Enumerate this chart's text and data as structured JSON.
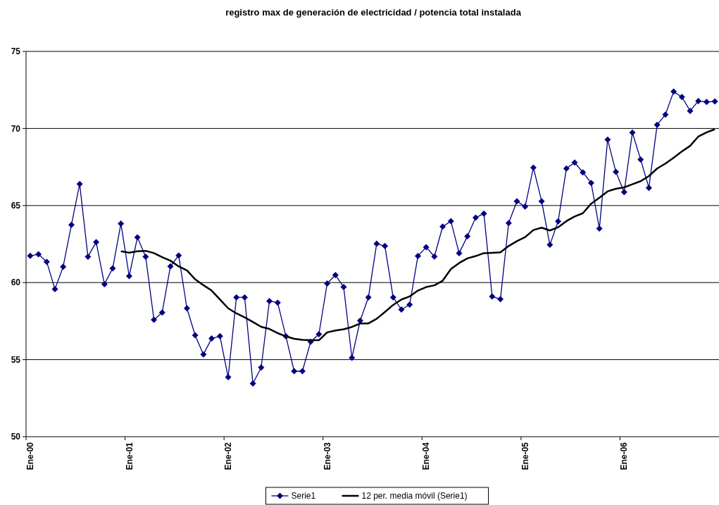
{
  "chart_data": {
    "type": "line",
    "title": "registro max de generación de electricidad / potencia total instalada",
    "categories": [
      "Ene-00",
      null,
      null,
      null,
      null,
      null,
      null,
      null,
      null,
      null,
      null,
      null,
      "Ene-01",
      null,
      null,
      null,
      null,
      null,
      null,
      null,
      null,
      null,
      null,
      null,
      "Ene-02",
      null,
      null,
      null,
      null,
      null,
      null,
      null,
      null,
      null,
      null,
      null,
      "Ene-03",
      null,
      null,
      null,
      null,
      null,
      null,
      null,
      null,
      null,
      null,
      null,
      "Ene-04",
      null,
      null,
      null,
      null,
      null,
      null,
      null,
      null,
      null,
      null,
      null,
      "Ene-05",
      null,
      null,
      null,
      null,
      null,
      null,
      null,
      null,
      null,
      null,
      null,
      "Ene-06",
      null,
      null,
      null,
      null,
      null,
      null,
      null,
      null,
      null,
      null,
      null
    ],
    "series": [
      {
        "name": "Serie1",
        "color": "#000080",
        "marker": "diamond",
        "values": [
          61.73,
          61.84,
          61.35,
          59.58,
          61.03,
          63.75,
          66.4,
          61.68,
          62.63,
          59.9,
          60.92,
          63.83,
          60.42,
          62.93,
          61.68,
          57.59,
          58.06,
          61.05,
          61.76,
          58.33,
          56.58,
          55.34,
          56.37,
          56.52,
          53.86,
          59.04,
          59.04,
          53.45,
          54.49,
          58.8,
          58.7,
          56.51,
          54.25,
          54.25,
          56.16,
          56.65,
          59.94,
          60.49,
          59.71,
          55.12,
          57.53,
          59.04,
          62.52,
          62.37,
          59.04,
          58.25,
          58.57,
          61.72,
          62.3,
          61.69,
          63.63,
          63.98,
          61.91,
          63.0,
          64.21,
          64.48,
          59.1,
          58.92,
          63.86,
          65.28,
          64.93,
          67.46,
          65.28,
          62.45,
          63.97,
          67.4,
          67.79,
          67.15,
          66.47,
          63.5,
          69.28,
          67.18,
          65.87,
          69.73,
          67.99,
          66.15,
          70.23,
          70.9,
          72.39,
          72.04,
          71.14,
          71.78,
          71.72,
          71.75
        ]
      },
      {
        "name": "12 per. media móvil (Serie1)",
        "color": "#000000",
        "marker": "none",
        "values": [
          null,
          null,
          null,
          null,
          null,
          null,
          null,
          null,
          null,
          null,
          null,
          62.03,
          61.94,
          62.03,
          62.06,
          61.91,
          61.65,
          61.42,
          61.05,
          60.79,
          60.21,
          59.83,
          59.48,
          58.91,
          58.33,
          58.0,
          57.74,
          57.44,
          57.13,
          56.99,
          56.72,
          56.51,
          56.35,
          56.28,
          56.26,
          56.26,
          56.77,
          56.89,
          56.97,
          57.12,
          57.35,
          57.35,
          57.65,
          58.09,
          58.55,
          58.9,
          59.1,
          59.48,
          59.71,
          59.82,
          60.12,
          60.88,
          61.27,
          61.57,
          61.72,
          61.91,
          61.93,
          61.96,
          62.37,
          62.69,
          62.95,
          63.41,
          63.56,
          63.38,
          63.59,
          63.99,
          64.29,
          64.5,
          65.12,
          65.51,
          65.92,
          66.09,
          66.18,
          66.38,
          66.58,
          66.91,
          67.4,
          67.72,
          68.1,
          68.51,
          68.87,
          69.48,
          69.75,
          69.95
        ]
      }
    ],
    "ylim": [
      50,
      75
    ],
    "yticks": [
      50,
      55,
      60,
      65,
      70,
      75
    ],
    "grid": "y",
    "legend": "bottom"
  }
}
